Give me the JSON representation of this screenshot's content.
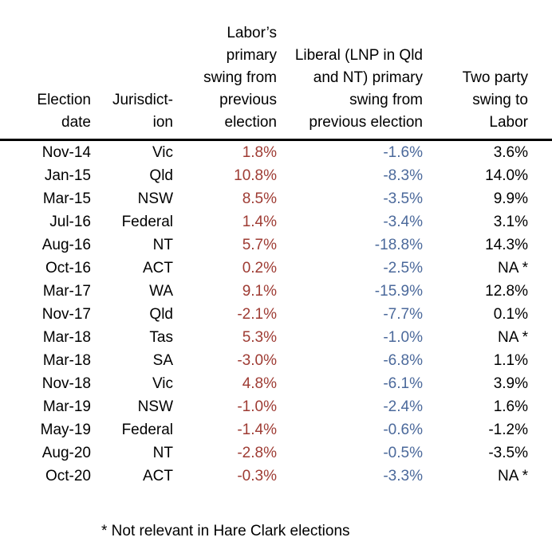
{
  "page": {
    "background": "#ffffff"
  },
  "table": {
    "columns": [
      {
        "id": "election-date",
        "header_lines": [
          "Election",
          "date"
        ],
        "header_text": "Election date"
      },
      {
        "id": "jurisdiction",
        "header_lines": [
          "Jurisdict-",
          "ion"
        ],
        "header_text": "Jurisdict-ion"
      },
      {
        "id": "labor-primary-swing",
        "header_lines": [
          "Labor’s",
          "primary",
          "swing from",
          "previous",
          "election"
        ],
        "header_text": "Labor’s primary swing from previous election"
      },
      {
        "id": "liberal-primary-swing",
        "header_lines": [
          "Liberal (LNP in Qld",
          "and NT) primary",
          "swing from",
          "previous election"
        ],
        "header_text": "Liberal (LNP in Qld and NT) primary swing from previous election"
      },
      {
        "id": "two-party-swing",
        "header_lines": [
          "Two party",
          "swing to",
          "Labor"
        ],
        "header_text": "Two party swing to Labor"
      }
    ],
    "rows": [
      [
        "Nov-14",
        "Vic",
        "1.8%",
        "-1.6%",
        "3.6%"
      ],
      [
        "Jan-15",
        "Qld",
        "10.8%",
        "-8.3%",
        "14.0%"
      ],
      [
        "Mar-15",
        "NSW",
        "8.5%",
        "-3.5%",
        "9.9%"
      ],
      [
        "Jul-16",
        "Federal",
        "1.4%",
        "-3.4%",
        "3.1%"
      ],
      [
        "Aug-16",
        "NT",
        "5.7%",
        "-18.8%",
        "14.3%"
      ],
      [
        "Oct-16",
        "ACT",
        "0.2%",
        "-2.5%",
        "NA *"
      ],
      [
        "Mar-17",
        "WA",
        "9.1%",
        "-15.9%",
        "12.8%"
      ],
      [
        "Nov-17",
        "Qld",
        "-2.1%",
        "-7.7%",
        "0.1%"
      ],
      [
        "Mar-18",
        "Tas",
        "5.3%",
        "-1.0%",
        "NA *"
      ],
      [
        "Mar-18",
        "SA",
        "-3.0%",
        "-6.8%",
        "1.1%"
      ],
      [
        "Nov-18",
        "Vic",
        "4.8%",
        "-6.1%",
        "3.9%"
      ],
      [
        "Mar-19",
        "NSW",
        "-1.0%",
        "-2.4%",
        "1.6%"
      ],
      [
        "May-19",
        "Federal",
        "-1.4%",
        "-0.6%",
        "-1.2%"
      ],
      [
        "Aug-20",
        "NT",
        "-2.8%",
        "-0.5%",
        "-3.5%"
      ],
      [
        "Oct-20",
        "ACT",
        "-0.3%",
        "-3.3%",
        "NA *"
      ]
    ],
    "footnote": "* Not relevant in Hare Clark elections"
  },
  "colors": {
    "text": "#000000",
    "labor_swing": "#9E3B33",
    "liberal_swing": "#4B699B",
    "header_rule": "#000000"
  },
  "chart_data": {
    "type": "table",
    "title": "",
    "columns": [
      "Election date",
      "Jurisdiction",
      "Labor's primary swing from previous election (%)",
      "Liberal (LNP in Qld and NT) primary swing from previous election (%)",
      "Two party swing to Labor (%)"
    ],
    "rows": [
      [
        "Nov-14",
        "Vic",
        1.8,
        -1.6,
        3.6
      ],
      [
        "Jan-15",
        "Qld",
        10.8,
        -8.3,
        14.0
      ],
      [
        "Mar-15",
        "NSW",
        8.5,
        -3.5,
        9.9
      ],
      [
        "Jul-16",
        "Federal",
        1.4,
        -3.4,
        3.1
      ],
      [
        "Aug-16",
        "NT",
        5.7,
        -18.8,
        14.3
      ],
      [
        "Oct-16",
        "ACT",
        0.2,
        -2.5,
        null
      ],
      [
        "Mar-17",
        "WA",
        9.1,
        -15.9,
        12.8
      ],
      [
        "Nov-17",
        "Qld",
        -2.1,
        -7.7,
        0.1
      ],
      [
        "Mar-18",
        "Tas",
        5.3,
        -1.0,
        null
      ],
      [
        "Mar-18",
        "SA",
        -3.0,
        -6.8,
        1.1
      ],
      [
        "Nov-18",
        "Vic",
        4.8,
        -6.1,
        3.9
      ],
      [
        "Mar-19",
        "NSW",
        -1.0,
        -2.4,
        1.6
      ],
      [
        "May-19",
        "Federal",
        -1.4,
        -0.6,
        -1.2
      ],
      [
        "Aug-20",
        "NT",
        -2.8,
        -0.5,
        -3.5
      ],
      [
        "Oct-20",
        "ACT",
        -0.3,
        -3.3,
        null
      ]
    ],
    "na_marker": "NA *",
    "footnote": "* Not relevant in Hare Clark elections",
    "legend_position": "none",
    "grid": false
  }
}
